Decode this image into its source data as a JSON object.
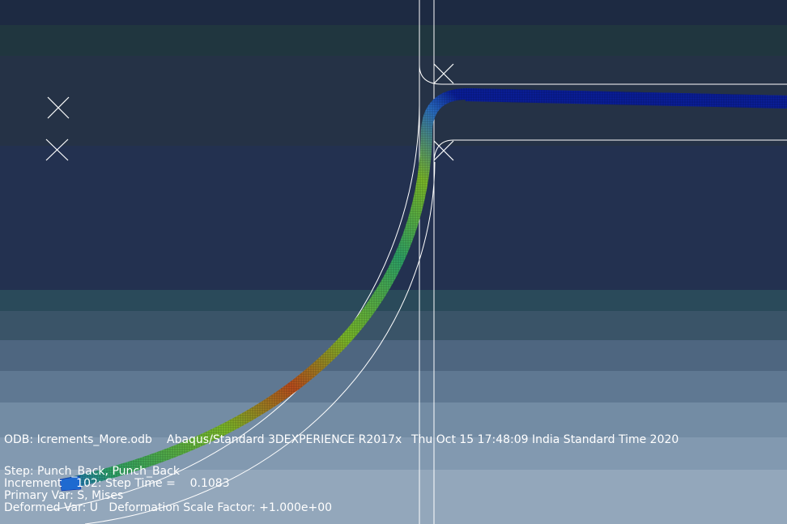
{
  "viewport": {
    "odb_line": {
      "odb": "ODB: Icrements_More.odb",
      "solver": "Abaqus/Standard 3DEXPERIENCE R2017x",
      "timestamp": "Thu Oct 15 17:48:09 India Standard Time 2020"
    },
    "step_line": "Step: Punch_Back, Punch_Back",
    "increment_line": "Increment    102: Step Time =    0.1083",
    "primary_var_line": "Primary Var: S, Mises",
    "deformed_var_line": "Deformed Var: U   Deformation Scale Factor: +1.000e+00"
  },
  "contour_colors": {
    "low": "#0a1f9e",
    "low_mid": "#1e6ad0",
    "mid": "#2fa86a",
    "mid_high": "#7fbf2a",
    "high": "#c8b020",
    "peak": "#c0501e",
    "outline": "#ffffff"
  }
}
